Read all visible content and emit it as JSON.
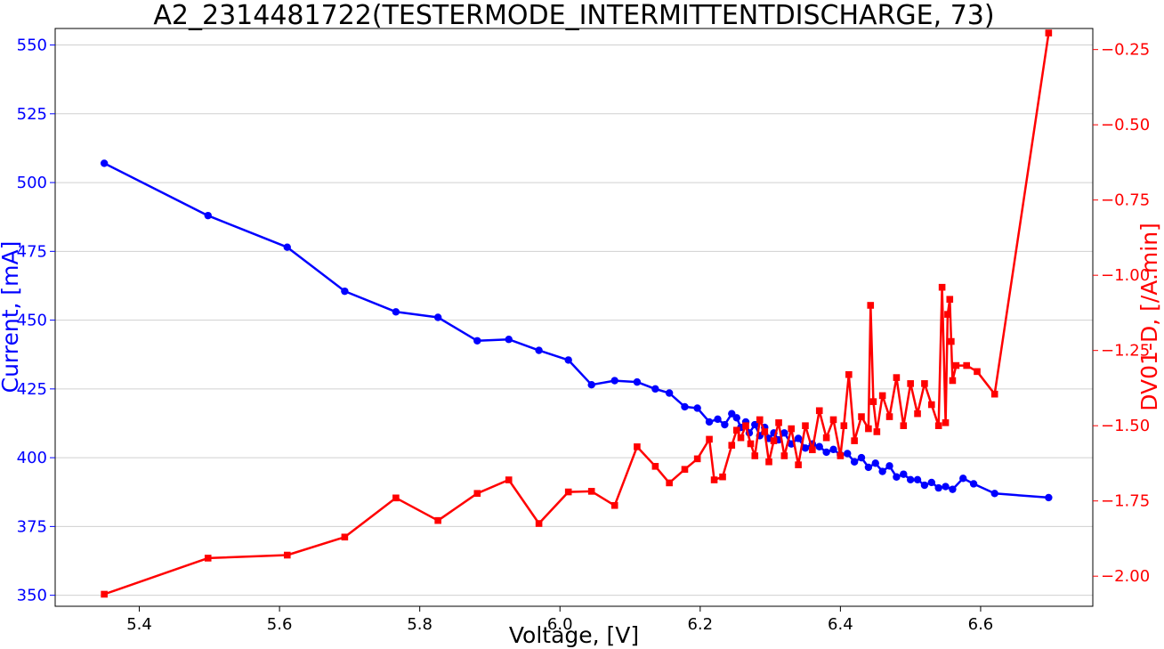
{
  "chart_data": {
    "type": "line",
    "title": "A2_2314481722(TESTERMODE_INTERMITTENTDISCHARGE, 73)",
    "xlabel": "Voltage, [V]",
    "ylabel": "Current, [mA]",
    "y2label": "DV01-D, [/A.min]",
    "xlim": [
      5.28,
      6.76
    ],
    "ylim": [
      346,
      556
    ],
    "y2lim": [
      -2.1,
      -0.18
    ],
    "xticks": [
      5.4,
      5.6,
      5.8,
      6.0,
      6.2,
      6.4,
      6.6
    ],
    "xtick_labels": [
      "5.4",
      "5.6",
      "5.8",
      "6.0",
      "6.2",
      "6.4",
      "6.6"
    ],
    "yticks": [
      350,
      375,
      400,
      425,
      450,
      475,
      500,
      525,
      550
    ],
    "ytick_labels": [
      "350",
      "375",
      "400",
      "425",
      "450",
      "475",
      "500",
      "525",
      "550"
    ],
    "y2ticks": [
      -2.0,
      -1.75,
      -1.5,
      -1.25,
      -1.0,
      -0.75,
      -0.5,
      -0.25
    ],
    "y2tick_labels": [
      "−2.00",
      "−1.75",
      "−1.50",
      "−1.25",
      "−1.00",
      "−0.75",
      "−0.50",
      "−0.25"
    ],
    "grid": "horizontal",
    "colors": {
      "current": "#0000ff",
      "dv": "#ff0000",
      "grid": "#d0d0d0",
      "axis": "#000000"
    },
    "series": [
      {
        "axis": "left",
        "marker": "circle",
        "color": "#0000ff",
        "x": [
          5.35,
          5.498,
          5.611,
          5.693,
          5.766,
          5.826,
          5.882,
          5.927,
          5.97,
          6.012,
          6.045,
          6.078,
          6.11,
          6.136,
          6.156,
          6.178,
          6.196,
          6.213,
          6.225,
          6.235,
          6.245,
          6.252,
          6.258,
          6.265,
          6.27,
          6.278,
          6.285,
          6.292,
          6.298,
          6.305,
          6.312,
          6.32,
          6.33,
          6.34,
          6.35,
          6.36,
          6.37,
          6.38,
          6.39,
          6.4,
          6.41,
          6.42,
          6.43,
          6.44,
          6.45,
          6.46,
          6.47,
          6.48,
          6.49,
          6.5,
          6.51,
          6.52,
          6.53,
          6.54,
          6.55,
          6.56,
          6.575,
          6.59,
          6.62,
          6.697
        ],
        "y": [
          507,
          488,
          476.5,
          460.5,
          453,
          451,
          442.5,
          443,
          439,
          435.5,
          426.5,
          428,
          427.5,
          425,
          423.5,
          418.5,
          418,
          413,
          414,
          412,
          416,
          414.5,
          411,
          413,
          409,
          412,
          408,
          411,
          407,
          409,
          406.5,
          409,
          405,
          407,
          403.5,
          405,
          404,
          402,
          403,
          401,
          401.5,
          398.5,
          400,
          396.5,
          398,
          395,
          397,
          393,
          394,
          392,
          392,
          390,
          391,
          389,
          389.5,
          388.5,
          392.5,
          390.5,
          387,
          385.5
        ]
      },
      {
        "axis": "right",
        "marker": "square",
        "color": "#ff0000",
        "x": [
          5.35,
          5.498,
          5.611,
          5.693,
          5.766,
          5.826,
          5.882,
          5.927,
          5.97,
          6.012,
          6.045,
          6.078,
          6.11,
          6.136,
          6.156,
          6.178,
          6.196,
          6.213,
          6.22,
          6.232,
          6.245,
          6.252,
          6.258,
          6.265,
          6.272,
          6.278,
          6.285,
          6.292,
          6.298,
          6.305,
          6.312,
          6.32,
          6.33,
          6.34,
          6.35,
          6.36,
          6.37,
          6.38,
          6.39,
          6.4,
          6.405,
          6.412,
          6.42,
          6.43,
          6.44,
          6.443,
          6.447,
          6.452,
          6.46,
          6.47,
          6.48,
          6.49,
          6.5,
          6.51,
          6.52,
          6.53,
          6.54,
          6.545,
          6.55,
          6.553,
          6.556,
          6.558,
          6.56,
          6.565,
          6.58,
          6.595,
          6.62,
          6.697
        ],
        "y": [
          -2.06,
          -1.94,
          -1.93,
          -1.87,
          -1.74,
          -1.815,
          -1.725,
          -1.68,
          -1.825,
          -1.72,
          -1.718,
          -1.765,
          -1.57,
          -1.635,
          -1.69,
          -1.645,
          -1.61,
          -1.545,
          -1.68,
          -1.67,
          -1.565,
          -1.515,
          -1.54,
          -1.5,
          -1.56,
          -1.6,
          -1.48,
          -1.52,
          -1.62,
          -1.55,
          -1.49,
          -1.6,
          -1.51,
          -1.63,
          -1.5,
          -1.58,
          -1.45,
          -1.54,
          -1.48,
          -1.6,
          -1.5,
          -1.33,
          -1.55,
          -1.47,
          -1.51,
          -1.1,
          -1.42,
          -1.52,
          -1.4,
          -1.47,
          -1.34,
          -1.5,
          -1.36,
          -1.46,
          -1.36,
          -1.43,
          -1.5,
          -1.04,
          -1.49,
          -1.13,
          -1.08,
          -1.22,
          -1.35,
          -1.3,
          -1.3,
          -1.32,
          -1.395,
          -0.195
        ]
      }
    ]
  }
}
